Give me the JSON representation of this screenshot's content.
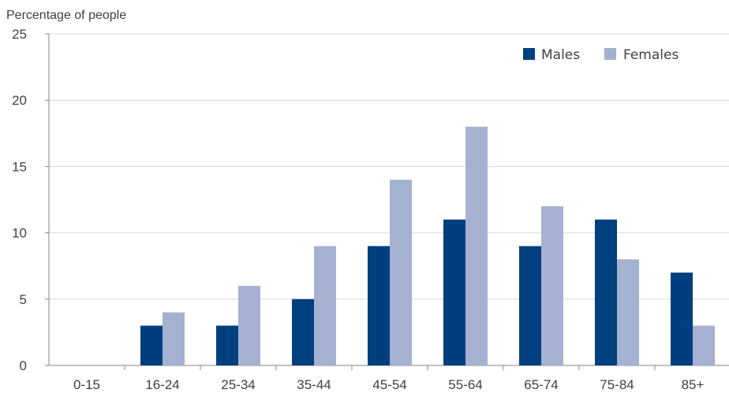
{
  "chart_data": {
    "type": "bar",
    "title": "",
    "xlabel": "",
    "ylabel": "Percentage of people",
    "categories": [
      "0-15",
      "16-24",
      "25-34",
      "35-44",
      "45-54",
      "55-64",
      "65-74",
      "75-84",
      "85+"
    ],
    "series": [
      {
        "name": "Males",
        "color": "#003f7d",
        "values": [
          0,
          3,
          3,
          5,
          9,
          11,
          9,
          11,
          7
        ]
      },
      {
        "name": "Females",
        "color": "#a5b1d0",
        "values": [
          0,
          4,
          6,
          9,
          14,
          18,
          12,
          8,
          3
        ]
      }
    ],
    "ylim": [
      0,
      25
    ],
    "yticks": [
      0,
      5,
      10,
      15,
      20,
      25
    ],
    "grid": true,
    "legend": "top-right"
  }
}
